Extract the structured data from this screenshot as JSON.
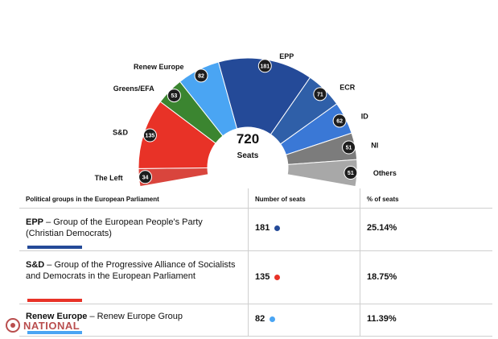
{
  "chart_data": {
    "type": "parliament",
    "total": 720,
    "center_number": "720",
    "center_label": "Seats",
    "series": [
      {
        "name": "The Left",
        "value": 34,
        "color": "#d9453d"
      },
      {
        "name": "S&D",
        "value": 135,
        "color": "#e83227"
      },
      {
        "name": "Greens/EFA",
        "value": 53,
        "color": "#3b8530"
      },
      {
        "name": "Renew Europe",
        "value": 82,
        "color": "#4aa5f3"
      },
      {
        "name": "EPP",
        "value": 181,
        "color": "#244a98"
      },
      {
        "name": "ECR",
        "value": 71,
        "color": "#2f5fa8"
      },
      {
        "name": "ID",
        "value": 62,
        "color": "#3a78d6"
      },
      {
        "name": "NI",
        "value": 51,
        "color": "#7c7c7c"
      },
      {
        "name": "Others",
        "value": 51,
        "color": "#a8a8a8"
      }
    ]
  },
  "table": {
    "headers": [
      "Political groups in the European Parliament",
      "Number of seats",
      "% of seats"
    ],
    "rows": [
      {
        "abbr": "EPP",
        "name": " – Group of the European People's Party (Christian Democrats)",
        "seats": "181",
        "pct": "25.14%",
        "color": "#244a98"
      },
      {
        "abbr": "S&D",
        "name": " – Group of the Progressive Alliance of Socialists and Democrats in the European Parliament",
        "seats": "135",
        "pct": "18.75%",
        "color": "#e83227"
      },
      {
        "abbr": "Renew Europe",
        "name": " – Renew Europe Group",
        "seats": "82",
        "pct": "11.39%",
        "color": "#4aa5f3"
      }
    ]
  },
  "watermark": {
    "text": "NATIONAL",
    "color": "#b23b3b"
  }
}
